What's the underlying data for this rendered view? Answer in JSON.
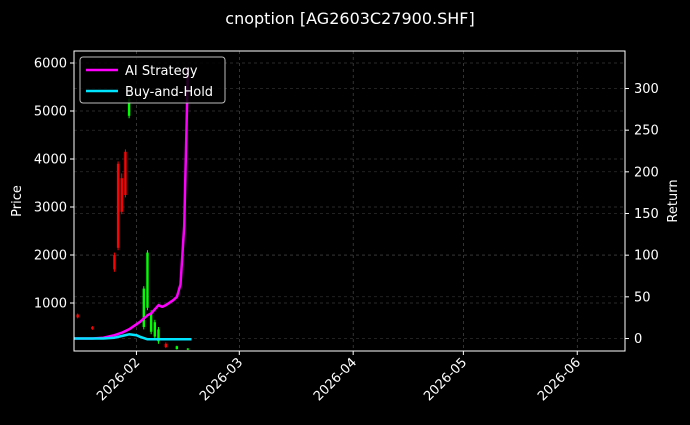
{
  "chart_data": {
    "type": "line",
    "title": "cnoption [AG2603C27900.SHF]",
    "background": "#000000",
    "grid": true,
    "legend_position": "top-left",
    "x_axis": {
      "type": "date",
      "range": [
        "2026-01-15",
        "2026-06-14"
      ],
      "tick_labels": [
        "2026-02",
        "2026-03",
        "2026-04",
        "2026-05",
        "2026-06"
      ],
      "tick_values": [
        "2026-02-01",
        "2026-03-01",
        "2026-04-01",
        "2026-05-01",
        "2026-06-01"
      ]
    },
    "y_left": {
      "label": "Price",
      "range": [
        0,
        6250
      ],
      "ticks": [
        1000,
        2000,
        3000,
        4000,
        5000,
        6000
      ],
      "tick_labels": [
        "1000",
        "2000",
        "3000",
        "4000",
        "5000",
        "6000"
      ]
    },
    "y_right": {
      "label": "Return",
      "range": [
        -15,
        345
      ],
      "ticks": [
        0,
        50,
        100,
        150,
        200,
        250,
        300
      ],
      "tick_labels": [
        "0",
        "50",
        "100",
        "150",
        "200",
        "250",
        "300"
      ]
    },
    "candles": [
      {
        "date": "2026-01-16",
        "open": 760,
        "close": 700,
        "high": 780,
        "low": 680,
        "color": "#ff0000"
      },
      {
        "date": "2026-01-20",
        "open": 500,
        "close": 460,
        "high": 520,
        "low": 440,
        "color": "#ff0000"
      },
      {
        "date": "2026-01-26",
        "open": 2000,
        "close": 1700,
        "high": 2050,
        "low": 1650,
        "color": "#ff0000"
      },
      {
        "date": "2026-01-27",
        "open": 3900,
        "close": 2150,
        "high": 3950,
        "low": 2100,
        "color": "#ff0000"
      },
      {
        "date": "2026-01-28",
        "open": 3600,
        "close": 2900,
        "high": 3700,
        "low": 2850,
        "color": "#ff0000"
      },
      {
        "date": "2026-01-29",
        "open": 4150,
        "close": 3250,
        "high": 4200,
        "low": 3200,
        "color": "#ff0000"
      },
      {
        "date": "2026-01-30",
        "open": 4900,
        "close": 5250,
        "high": 5300,
        "low": 4850,
        "color": "#00ff00"
      },
      {
        "date": "2026-02-03",
        "open": 500,
        "close": 1300,
        "high": 1350,
        "low": 450,
        "color": "#00ff00"
      },
      {
        "date": "2026-02-04",
        "open": 900,
        "close": 2050,
        "high": 2100,
        "low": 850,
        "color": "#00ff00"
      },
      {
        "date": "2026-02-05",
        "open": 400,
        "close": 800,
        "high": 850,
        "low": 350,
        "color": "#00ff00"
      },
      {
        "date": "2026-02-06",
        "open": 300,
        "close": 600,
        "high": 650,
        "low": 250,
        "color": "#00ff00"
      },
      {
        "date": "2026-02-07",
        "open": 200,
        "close": 450,
        "high": 500,
        "low": 150,
        "color": "#00ff00"
      },
      {
        "date": "2026-02-09",
        "open": 150,
        "close": 80,
        "high": 180,
        "low": 60,
        "color": "#ff0000"
      },
      {
        "date": "2026-02-12",
        "open": 40,
        "close": 100,
        "high": 110,
        "low": 30,
        "color": "#00ff00"
      },
      {
        "date": "2026-02-15",
        "open": 30,
        "close": 50,
        "high": 60,
        "low": 20,
        "color": "#00ff00"
      }
    ],
    "series": [
      {
        "name": "AI Strategy",
        "color": "#ff00ff",
        "axis": "right",
        "x": [
          "2026-01-15",
          "2026-01-20",
          "2026-01-23",
          "2026-01-26",
          "2026-01-28",
          "2026-01-30",
          "2026-02-01",
          "2026-02-02",
          "2026-02-04",
          "2026-02-05",
          "2026-02-06",
          "2026-02-07",
          "2026-02-08",
          "2026-02-09",
          "2026-02-11",
          "2026-02-12",
          "2026-02-13",
          "2026-02-14",
          "2026-02-15"
        ],
        "values": [
          0,
          0,
          1,
          4,
          7,
          11,
          17,
          20,
          28,
          30,
          35,
          40,
          38,
          40,
          46,
          50,
          65,
          135,
          325
        ]
      },
      {
        "name": "Buy-and-Hold",
        "color": "#00e5ff",
        "axis": "right",
        "x": [
          "2026-01-15",
          "2026-01-20",
          "2026-01-23",
          "2026-01-26",
          "2026-01-28",
          "2026-01-30",
          "2026-02-01",
          "2026-02-02",
          "2026-02-04",
          "2026-02-06",
          "2026-02-09",
          "2026-02-12",
          "2026-02-16"
        ],
        "values": [
          0,
          0,
          0,
          1,
          3,
          5,
          4,
          2,
          -1,
          -1,
          -1,
          -1,
          -1
        ]
      }
    ]
  }
}
